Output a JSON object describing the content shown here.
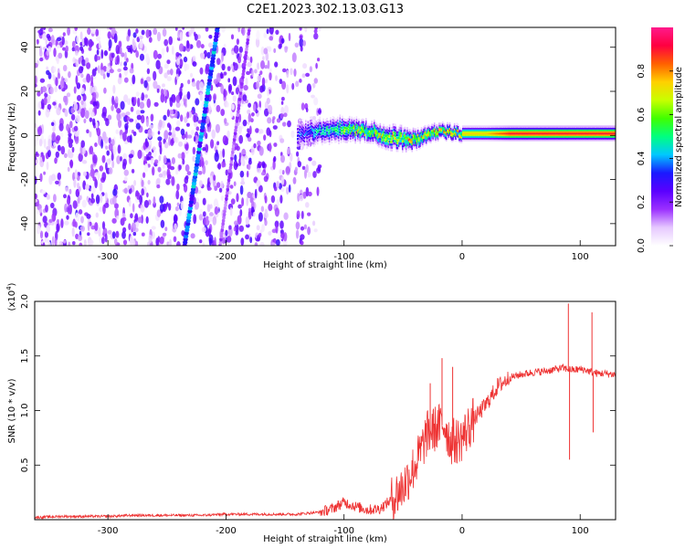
{
  "title": "C2E1.2023.302.13.03.G13",
  "chart_data": [
    {
      "type": "heatmap",
      "xlabel": "Height of straight line (km)",
      "ylabel": "Frequency (Hz)",
      "xlim": [
        -362,
        130
      ],
      "ylim": [
        -50,
        49
      ],
      "x_ticks": [
        -300,
        -200,
        -100,
        0,
        100
      ],
      "y_ticks": [
        -40,
        -20,
        0,
        20,
        40
      ],
      "colorbar": {
        "label": "Normalized spectral amplitude",
        "range": [
          0,
          1
        ],
        "ticks": [
          0.0,
          0.2,
          0.4,
          0.6,
          0.8
        ],
        "colormap": [
          "#ffffff",
          "#e6c8ff",
          "#9b30ff",
          "#5a00ff",
          "#1a1aff",
          "#00c8ff",
          "#00ff80",
          "#40ff00",
          "#c8ff00",
          "#ffd000",
          "#ff6000",
          "#ff0040",
          "#ff1a8c"
        ]
      },
      "features": {
        "noise_region_x": [
          -362,
          -120
        ],
        "noise_amplitude_typical": 0.1,
        "streak_1": {
          "x_at_freq_min": -235,
          "x_at_freq_max": -207,
          "amplitude": 0.35
        },
        "streak_2": {
          "x_at_freq_min": -205,
          "x_at_freq_max": -180,
          "amplitude": 0.15
        },
        "signal_band": {
          "x": [
            -140,
            -120,
            -100,
            -80,
            -60,
            -40,
            -20,
            0,
            20,
            40,
            60,
            80,
            100,
            130
          ],
          "center_frequency": [
            1,
            2,
            3,
            2,
            -1,
            -2,
            2,
            1,
            1,
            1,
            1,
            1,
            1,
            1
          ],
          "half_width": [
            6,
            5,
            5,
            4,
            5,
            4,
            3,
            3,
            3,
            3,
            3,
            3,
            3,
            3
          ],
          "peak_amplitude": [
            0.35,
            0.5,
            0.65,
            0.7,
            0.75,
            0.75,
            0.8,
            0.75,
            0.75,
            0.9,
            0.9,
            0.9,
            0.9,
            0.9
          ]
        }
      }
    },
    {
      "type": "line",
      "xlabel": "Height of straight line (km)",
      "ylabel": "SNR (10 * v/v)",
      "y_exponent_label": "(x10",
      "y_exponent_power": "4",
      "y_exponent_close": ")",
      "xlim": [
        -362,
        130
      ],
      "ylim": [
        0,
        2.0
      ],
      "x_ticks": [
        -300,
        -200,
        -100,
        0,
        100
      ],
      "y_ticks": [
        "0.5",
        "1.0",
        "1.5",
        "2.0"
      ],
      "color": "#ee3333",
      "series": [
        {
          "x": [
            -362,
            -340,
            -320,
            -300,
            -280,
            -260,
            -240,
            -220,
            -200,
            -180,
            -160,
            -140,
            -120,
            -110,
            -100,
            -90,
            -80,
            -70,
            -60,
            -50,
            -45,
            -40,
            -35,
            -30,
            -25,
            -20,
            -15,
            -10,
            -5,
            0,
            10,
            20,
            30,
            40,
            50,
            60,
            70,
            80,
            85,
            90,
            95,
            100,
            105,
            110,
            115,
            120,
            130
          ],
          "values": [
            0.02,
            0.03,
            0.03,
            0.03,
            0.04,
            0.04,
            0.04,
            0.04,
            0.05,
            0.05,
            0.05,
            0.05,
            0.07,
            0.1,
            0.16,
            0.12,
            0.09,
            0.1,
            0.18,
            0.3,
            0.4,
            0.5,
            0.62,
            0.78,
            0.82,
            0.85,
            0.88,
            0.72,
            0.72,
            0.75,
            0.92,
            1.05,
            1.22,
            1.3,
            1.33,
            1.35,
            1.36,
            1.38,
            1.39,
            1.38,
            1.37,
            1.38,
            1.37,
            1.35,
            1.34,
            1.34,
            1.33
          ]
        }
      ],
      "spikes": [
        {
          "x": -27,
          "value": 1.25
        },
        {
          "x": -17,
          "value": 1.48
        },
        {
          "x": -8,
          "value": 1.4
        },
        {
          "x": 90,
          "value": 1.98
        },
        {
          "x": 91,
          "value": 0.55
        },
        {
          "x": 110,
          "value": 1.9
        },
        {
          "x": 111,
          "value": 0.8
        }
      ]
    }
  ]
}
